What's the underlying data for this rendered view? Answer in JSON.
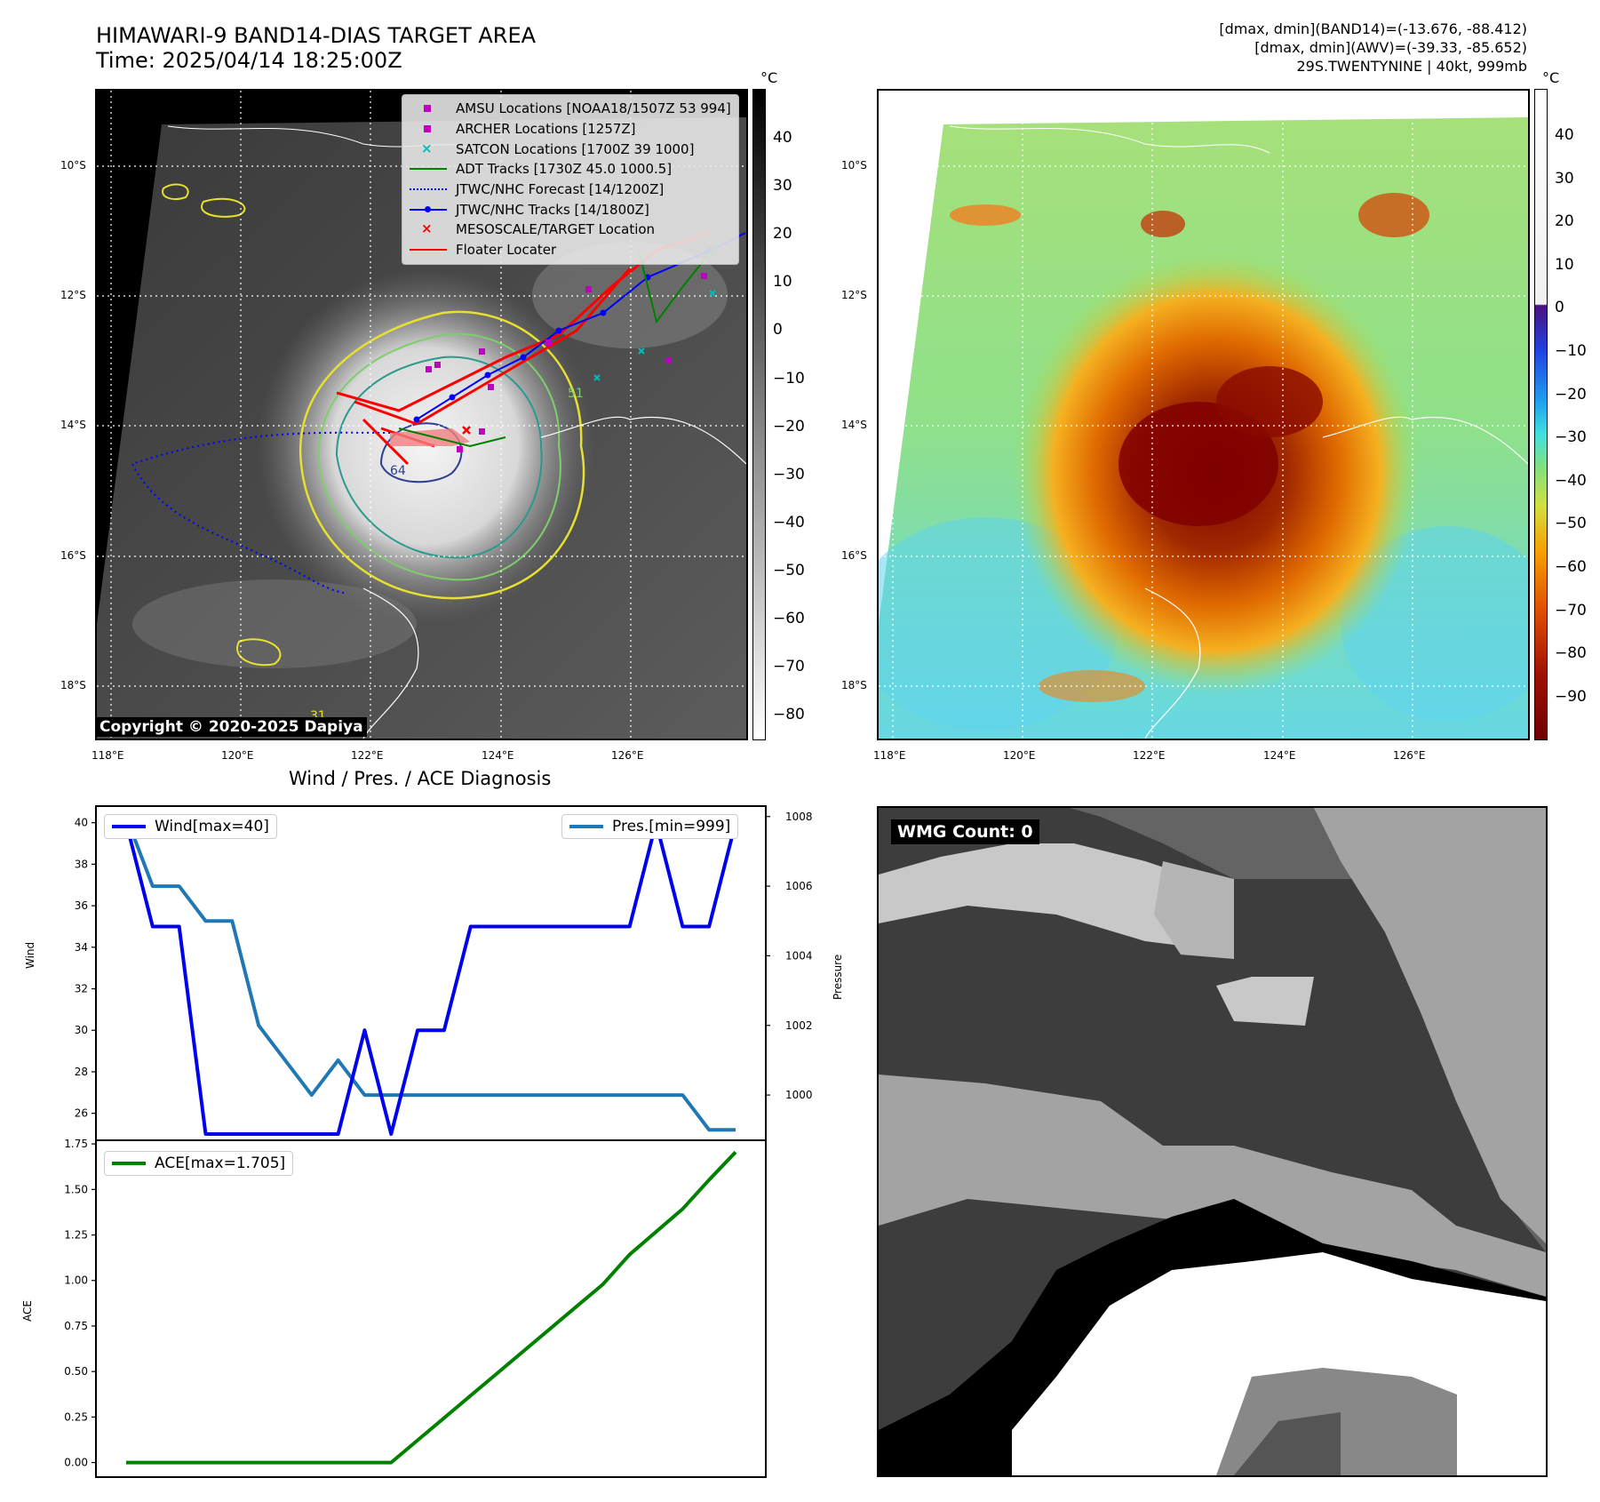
{
  "header": {
    "title_line1": "HIMAWARI-9 BAND14-DIAS TARGET AREA",
    "title_line2": "Time: 2025/04/14 18:25:00Z",
    "info_line1": "[dmax, dmin](BAND14)=(-13.676, -88.412)",
    "info_line2": "[dmax, dmin](AWV)=(-39.33, -85.652)",
    "info_line3": "29S.TWENTYNINE | 40kt, 999mb"
  },
  "map": {
    "lat_labels": [
      "10°S",
      "12°S",
      "14°S",
      "16°S",
      "18°S"
    ],
    "lon_labels": [
      "118°E",
      "120°E",
      "122°E",
      "124°E",
      "126°E"
    ],
    "copyright": "Copyright © 2020-2025 Dapiya",
    "legend": [
      {
        "label": "AMSU Locations [NOAA18/1507Z 53 994]",
        "color": "#c000c0",
        "kind": "square"
      },
      {
        "label": "ARCHER Locations [1257Z]",
        "color": "#c000c0",
        "kind": "square"
      },
      {
        "label": "SATCON Locations [1700Z 39 1000]",
        "color": "#00bcbc",
        "kind": "x"
      },
      {
        "label": "ADT Tracks [1730Z 45.0 1000.5]",
        "color": "#008000",
        "kind": "line"
      },
      {
        "label": "JTWC/NHC Forecast [14/1200Z]",
        "color": "#0000ff",
        "kind": "dotted"
      },
      {
        "label": "JTWC/NHC Tracks [14/1800Z]",
        "color": "#0000ff",
        "kind": "linemarker"
      },
      {
        "label": "MESOSCALE/TARGET Location",
        "color": "#ff0000",
        "kind": "x"
      },
      {
        "label": "Floater Locater",
        "color": "#ff0000",
        "kind": "line"
      }
    ],
    "contour_labels": [
      "64",
      "51",
      "31"
    ]
  },
  "colorbar_left": {
    "unit": "°C",
    "ticks": [
      "40",
      "30",
      "20",
      "10",
      "0",
      "−10",
      "−20",
      "−30",
      "−40",
      "−50",
      "−60",
      "−70",
      "−80"
    ]
  },
  "colorbar_right": {
    "unit": "°C",
    "ticks": [
      "40",
      "30",
      "20",
      "10",
      "0",
      "−10",
      "−20",
      "−30",
      "−40",
      "−50",
      "−60",
      "−70",
      "−80",
      "−90"
    ]
  },
  "diagnosis": {
    "title": "Wind / Pres. / ACE Diagnosis",
    "wind_legend": "Wind[max=40]",
    "pres_legend": "Pres.[min=999]",
    "ace_legend": "ACE[max=1.705]",
    "wind_ylabel": "Wind",
    "pres_ylabel": "Pressure",
    "ace_ylabel": "ACE",
    "wind_color": "#0000ee",
    "pres_color": "#1f77b4",
    "ace_color": "#008000"
  },
  "wmg": {
    "label": "WMG Count: 0"
  },
  "chart_data": [
    {
      "type": "line",
      "title": "Wind / Pres. / ACE Diagnosis",
      "ylabel": "Wind",
      "ylim": [
        24.7,
        40.8
      ],
      "yticks": [
        26,
        28,
        30,
        32,
        34,
        36,
        38,
        40
      ],
      "series": [
        {
          "name": "Wind[max=40]",
          "values": [
            40,
            35,
            35,
            25,
            25,
            25,
            25,
            25,
            25,
            30,
            25,
            30,
            30,
            35,
            35,
            35,
            35,
            35,
            35,
            35,
            40,
            35,
            35,
            40
          ]
        }
      ]
    },
    {
      "type": "line",
      "ylabel": "Pressure",
      "ylim": [
        998.7,
        1008.3
      ],
      "yticks": [
        1000,
        1002,
        1004,
        1006,
        1008
      ],
      "series": [
        {
          "name": "Pres.[min=999]",
          "values": [
            1008,
            1006,
            1006,
            1005,
            1005,
            1002,
            1001,
            1000,
            1001,
            1000,
            1000,
            1000,
            1000,
            1000,
            1000,
            1000,
            1000,
            1000,
            1000,
            1000,
            1000,
            1000,
            999,
            999
          ]
        }
      ]
    },
    {
      "type": "line",
      "ylabel": "ACE",
      "ylim": [
        -0.08,
        1.77
      ],
      "yticks": [
        "0.00",
        "0.25",
        "0.50",
        "0.75",
        "1.00",
        "1.25",
        "1.50",
        "1.75"
      ],
      "series": [
        {
          "name": "ACE[max=1.705]",
          "values": [
            0,
            0,
            0,
            0,
            0,
            0,
            0,
            0,
            0,
            0,
            0,
            0.1225,
            0.245,
            0.3675,
            0.49,
            0.6125,
            0.735,
            0.8575,
            0.98,
            1.1425,
            1.2675,
            1.3925,
            1.5525,
            1.705
          ]
        }
      ]
    }
  ]
}
